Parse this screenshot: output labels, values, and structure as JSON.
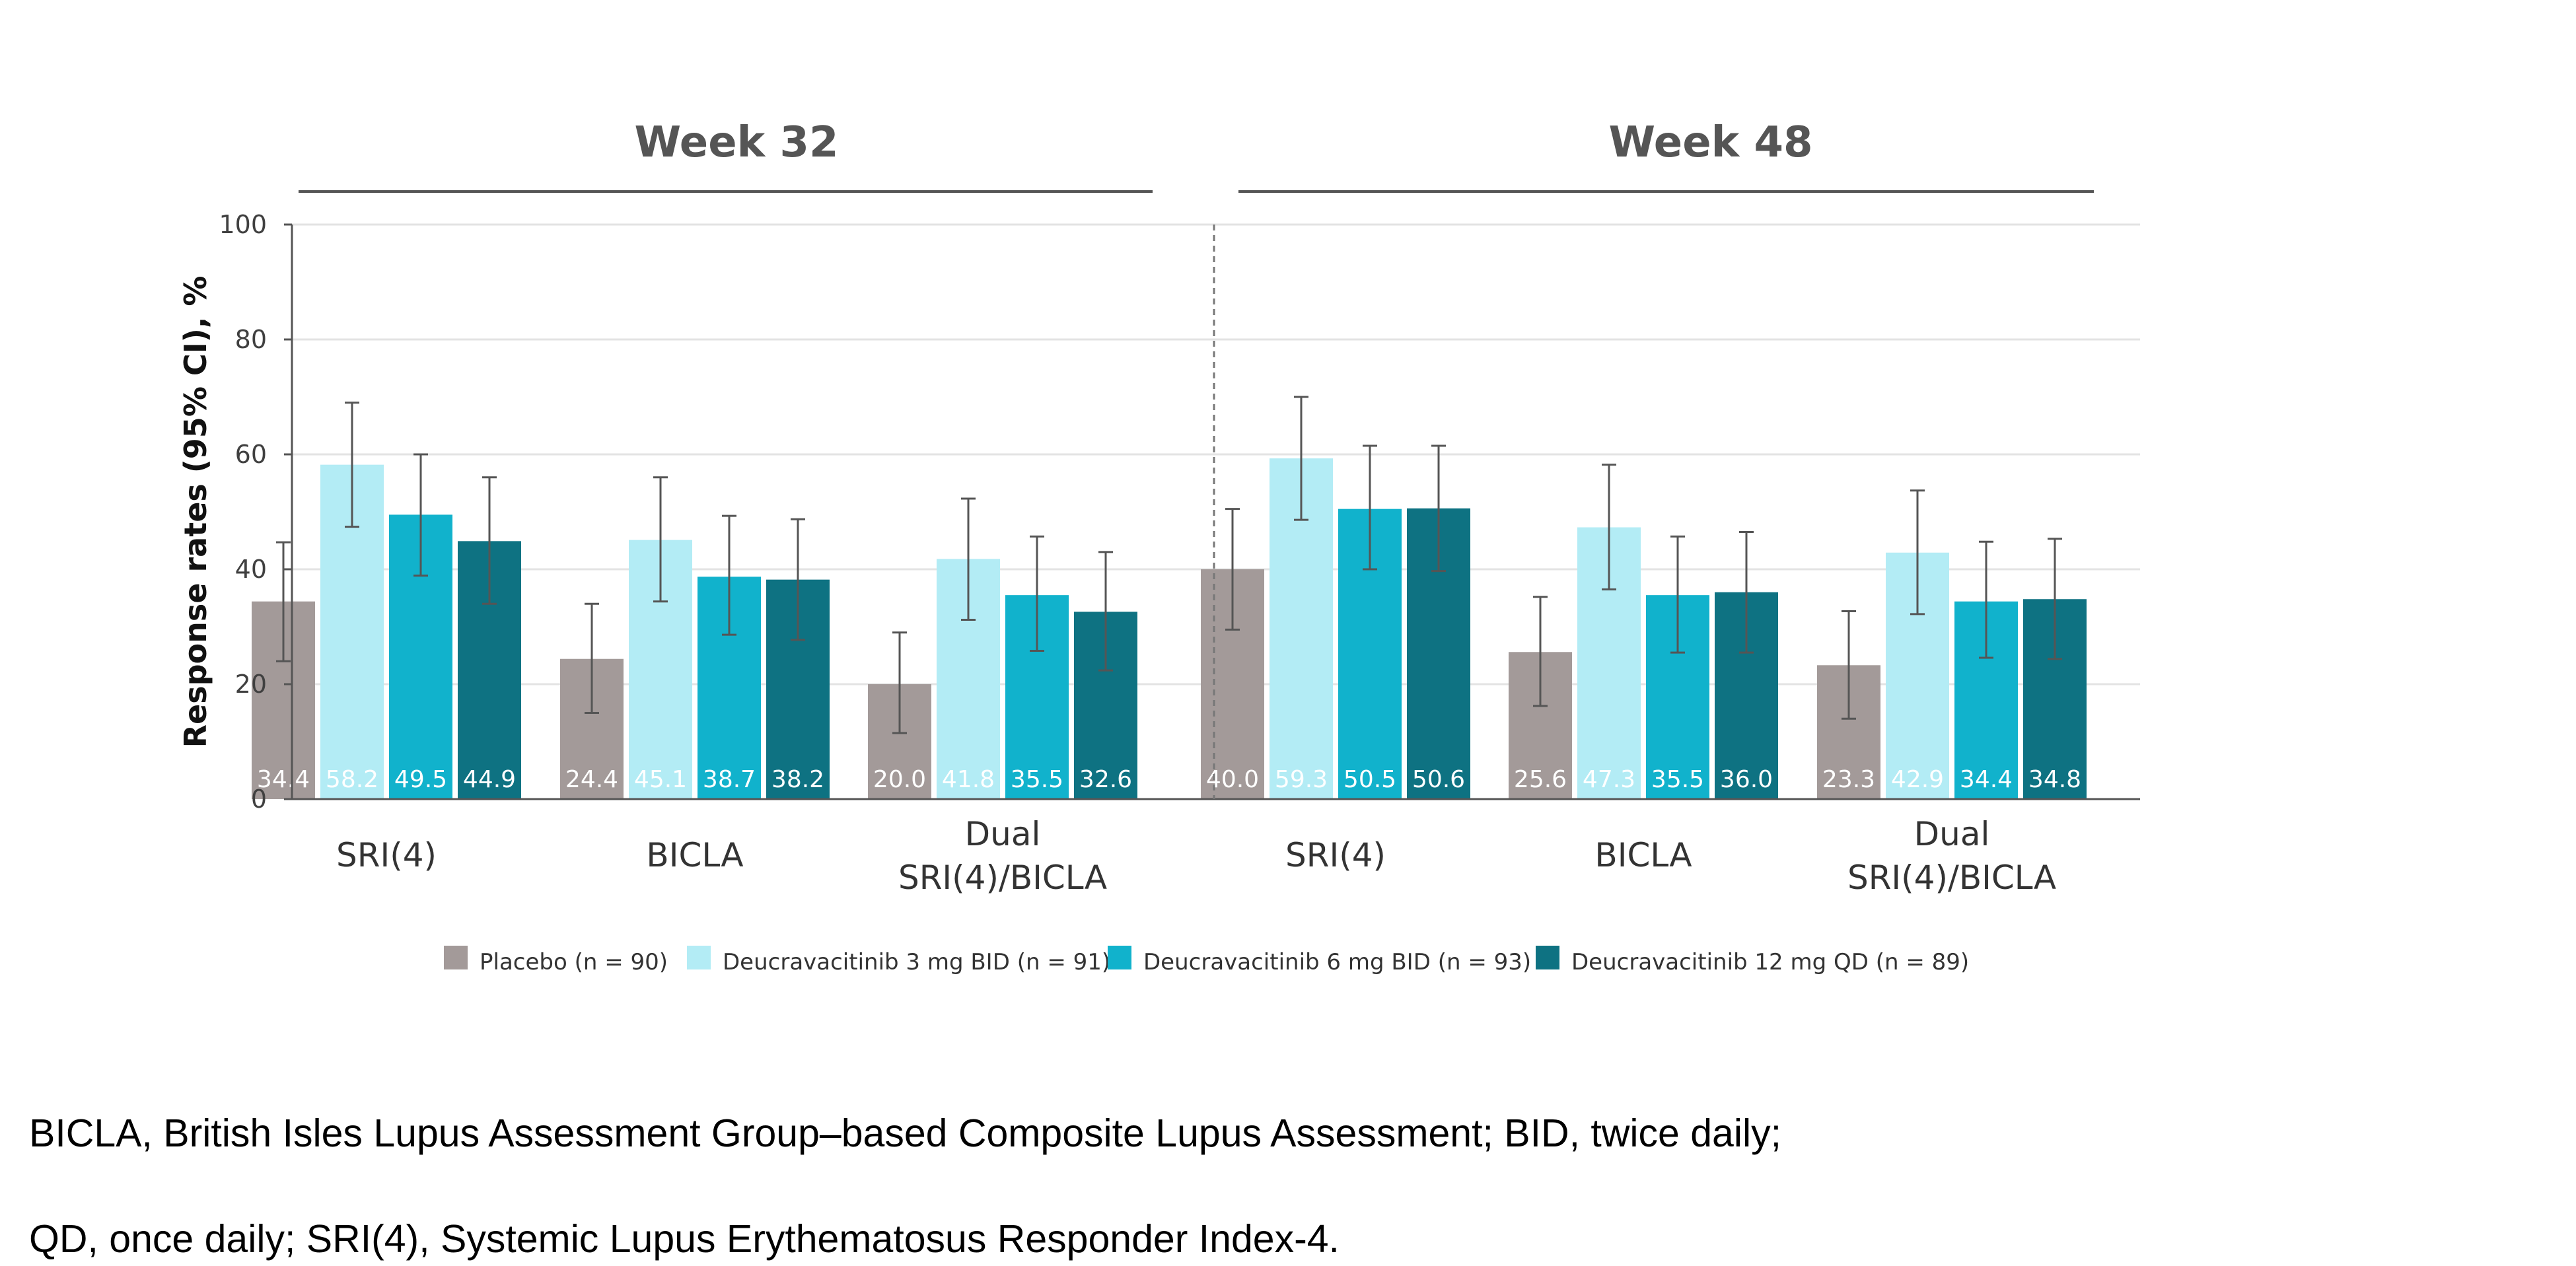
{
  "chart_data": {
    "type": "bar",
    "panels": [
      {
        "title": "Week 32",
        "categories": [
          "SRI(4)",
          "BICLA",
          "Dual\nSRI(4)/BICLA"
        ]
      },
      {
        "title": "Week 48",
        "categories": [
          "SRI(4)",
          "BICLA",
          "Dual\nSRI(4)/BICLA"
        ]
      }
    ],
    "ylabel": "Response rates (95% CI), %",
    "ylim": [
      0,
      100
    ],
    "yticks": [
      0,
      20,
      40,
      60,
      80,
      100
    ],
    "grid": true,
    "legend_position": "bottom",
    "series": [
      {
        "name": "Placebo (n = 90)",
        "color": "#a39a99",
        "values": [
          34.4,
          24.4,
          20.0,
          40.0,
          25.6,
          23.3
        ],
        "labels": [
          "34.4",
          "24.4",
          "20.0",
          "40.0",
          "25.6",
          "23.3"
        ],
        "ci": [
          [
            24,
            44.7
          ],
          [
            15,
            34
          ],
          [
            11.5,
            29
          ],
          [
            29.5,
            50.5
          ],
          [
            16.2,
            35.2
          ],
          [
            14,
            32.7
          ]
        ]
      },
      {
        "name": "Deucravacitinib 3 mg BID (n = 91)",
        "color": "#b3ecf5",
        "values": [
          58.2,
          45.1,
          41.8,
          59.3,
          47.3,
          42.9
        ],
        "labels": [
          "58.2",
          "45.1",
          "41.8",
          "59.3",
          "47.3",
          "42.9"
        ],
        "ci": [
          [
            47.4,
            69
          ],
          [
            34.4,
            56
          ],
          [
            31.2,
            52.3
          ],
          [
            48.6,
            70
          ],
          [
            36.5,
            58.2
          ],
          [
            32.2,
            53.7
          ]
        ]
      },
      {
        "name": "Deucravacitinib 6 mg BID (n = 93)",
        "color": "#11b2cc",
        "values": [
          49.5,
          38.7,
          35.5,
          50.5,
          35.5,
          34.4
        ],
        "labels": [
          "49.5",
          "38.7",
          "35.5",
          "50.5",
          "35.5",
          "34.4"
        ],
        "ci": [
          [
            38.9,
            60
          ],
          [
            28.6,
            49.3
          ],
          [
            25.8,
            45.7
          ],
          [
            40,
            61.5
          ],
          [
            25.5,
            45.7
          ],
          [
            24.6,
            44.8
          ]
        ]
      },
      {
        "name": "Deucravacitinib 12 mg QD (n = 89)",
        "color": "#0e7282",
        "values": [
          44.9,
          38.2,
          32.6,
          50.6,
          36.0,
          34.8
        ],
        "labels": [
          "44.9",
          "38.2",
          "32.6",
          "50.6",
          "36.0",
          "34.8"
        ],
        "ci": [
          [
            34,
            56
          ],
          [
            27.7,
            48.7
          ],
          [
            22.4,
            43
          ],
          [
            39.7,
            61.5
          ],
          [
            25.5,
            46.5
          ],
          [
            24.4,
            45.3
          ]
        ]
      }
    ]
  },
  "footnote": {
    "line1": "BICLA, British Isles Lupus Assessment Group–based Composite Lupus Assessment; BID, twice daily;",
    "line2": "QD, once daily; SRI(4), Systemic Lupus Erythematosus Responder Index-4."
  }
}
